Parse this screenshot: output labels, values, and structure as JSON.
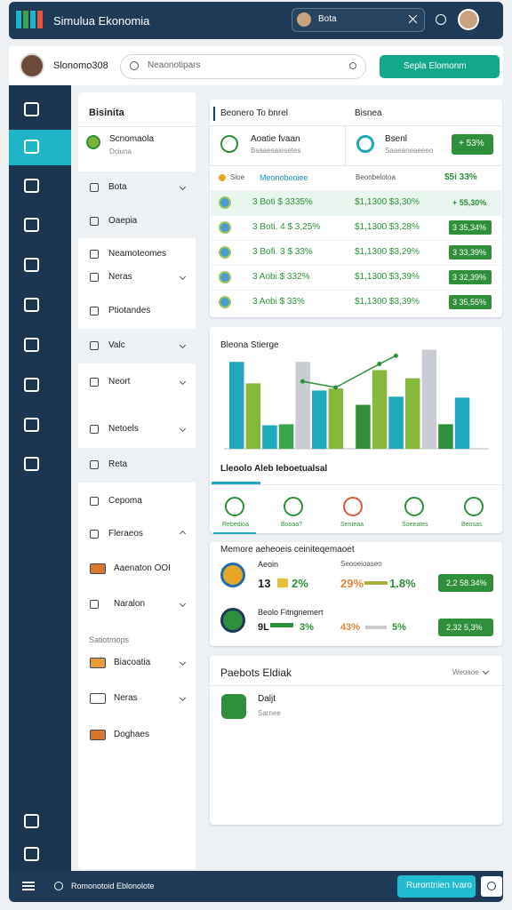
{
  "topbar": {
    "title": "Simulua Ekonomia",
    "search": "Bota"
  },
  "header": {
    "user": "Slonomo308",
    "search": "Neaonotipars",
    "button": "Sepla Elomonm"
  },
  "nav": {
    "title": "Bisinita",
    "profile": {
      "name": "Scnomaola",
      "sub": "Dciuna"
    },
    "items": [
      "Bota",
      "Oaepia",
      "Neamoteomes",
      "Neras",
      "Ptiotandes",
      "Valc",
      "Neort",
      "Netoels",
      "Reta",
      "Cepoma",
      "Fleraeos",
      "Aaenaton OOI",
      "Naralon"
    ],
    "section": "Satiotmops",
    "items2": [
      "Biacoatia",
      "Neras",
      "Doghaes"
    ]
  },
  "table": {
    "title": "Beonero To bnrel",
    "title2": "Bisnea",
    "card1": {
      "name": "Aoatie fvaan",
      "sub": "Bsaaesaiesetes"
    },
    "card2": {
      "name": "Bsenl",
      "sub": "Saaeaneaeeeo",
      "badge": "+ 53%"
    },
    "header": [
      "Sioe",
      "Meonobeoiee",
      "Beonbelotoa",
      "$5i 33%"
    ],
    "rows": [
      [
        "3 Boti $ 3335%",
        "$1,1300 $3,30%",
        "+ 55,30%"
      ],
      [
        "3 Boti. 4 $ 3,25%",
        "$1,1300 $3,28%",
        "3 35,34%"
      ],
      [
        "3 Bofi. 3 $ 33%",
        "$1,1300 $3,29%",
        "3 33,39%"
      ],
      [
        "3 Aobi $ 332%",
        "$1,1300 $3,39%",
        "3 32,39%"
      ],
      [
        "3 Aobi $ 33%",
        "$1,1300 $3,39%",
        "3 35,55%"
      ]
    ]
  },
  "chart": {
    "type": "bar",
    "title": "Bleona Stierge",
    "caption": "Lleoolo Aleb Ieboetualsal",
    "ylim": [
      0,
      100
    ],
    "values": [
      85,
      64,
      23,
      24,
      85,
      57,
      59,
      43,
      77,
      51,
      69,
      97,
      24,
      50
    ],
    "colors": [
      "#20a9bd",
      "#86b83c",
      "#20a9bd",
      "#3aa54a",
      "#c9ccd3",
      "#20a9bd",
      "#86b83c",
      "#2f8f3a",
      "#86b83c",
      "#20a9bd",
      "#86b83c",
      "#c9ccd3",
      "#2f8f3a",
      "#20a9bd"
    ],
    "line": {
      "color": "#2f8f3a",
      "values": [
        null,
        null,
        null,
        null,
        66,
        null,
        60,
        null,
        83,
        91,
        null,
        null,
        null,
        null
      ]
    }
  },
  "tabs": [
    "Rebedioa",
    "Booaa?",
    "Senteaa",
    "Soeeates",
    "Beosas"
  ],
  "metrics": {
    "title": "Memore aeheoeis ceiniteqemaoet",
    "rows": [
      {
        "label": "Aeoin",
        "label2": "Seooeioaseo",
        "a": "13",
        "b": "2%",
        "c": "29%",
        "d": "1.8%",
        "badge": "2,2 58.34%"
      },
      {
        "label": "Beolo Fitngnemert",
        "a": "9L",
        "b": "3%",
        "c": "43%",
        "d": "5%",
        "badge": "2,32 5,3%"
      }
    ]
  },
  "panel": {
    "title": "Paebots Eldiak",
    "link": "Weoaoe",
    "item": {
      "name": "Daljt",
      "sub": "Sarnee"
    }
  },
  "footer": {
    "text": "Romonotoid Eblonolote",
    "button": "Rurontnien Ivaro"
  }
}
